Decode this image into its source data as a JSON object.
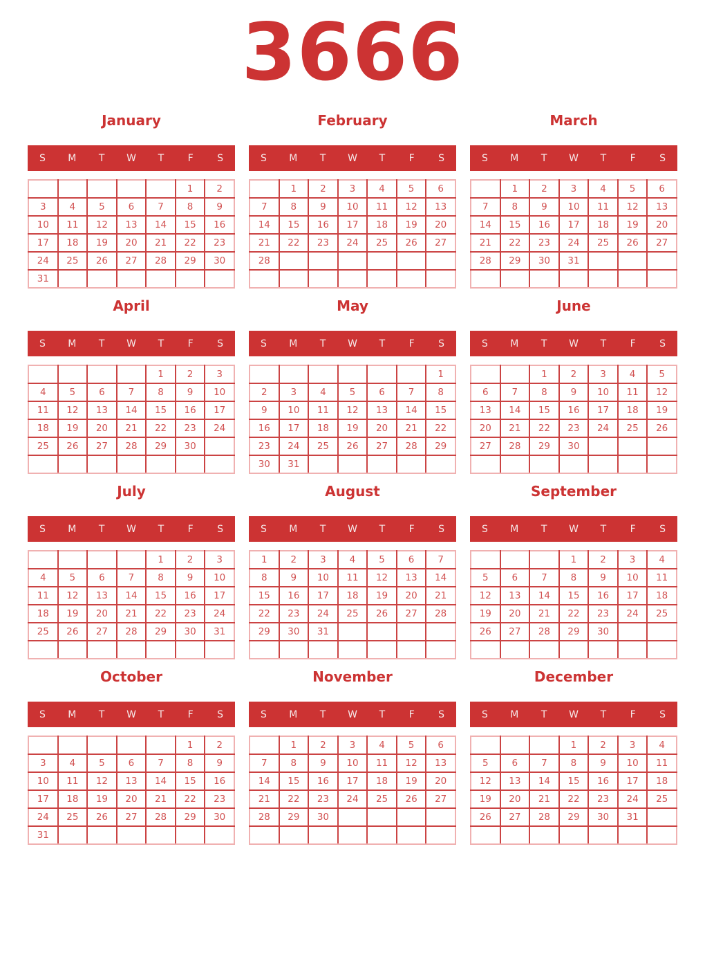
{
  "title": "3666",
  "weekday_headers": [
    "S",
    "M",
    "T",
    "W",
    "T",
    "F",
    "S"
  ],
  "colors": {
    "accent_red": "#cc3333",
    "day_number_red": "#d15151",
    "grid_line_red": "#cb4343",
    "grid_outer_pink": "#f0b1b1",
    "weekday_text": "#f6e9e9",
    "background": "#ffffff"
  },
  "months": [
    {
      "name": "January",
      "weeks": [
        [
          "",
          "",
          "",
          "",
          "",
          "1",
          "2"
        ],
        [
          "3",
          "4",
          "5",
          "6",
          "7",
          "8",
          "9"
        ],
        [
          "10",
          "11",
          "12",
          "13",
          "14",
          "15",
          "16"
        ],
        [
          "17",
          "18",
          "19",
          "20",
          "21",
          "22",
          "23"
        ],
        [
          "24",
          "25",
          "26",
          "27",
          "28",
          "29",
          "30"
        ],
        [
          "31",
          "",
          "",
          "",
          "",
          "",
          ""
        ]
      ]
    },
    {
      "name": "February",
      "weeks": [
        [
          "",
          "1",
          "2",
          "3",
          "4",
          "5",
          "6"
        ],
        [
          "7",
          "8",
          "9",
          "10",
          "11",
          "12",
          "13"
        ],
        [
          "14",
          "15",
          "16",
          "17",
          "18",
          "19",
          "20"
        ],
        [
          "21",
          "22",
          "23",
          "24",
          "25",
          "26",
          "27"
        ],
        [
          "28",
          "",
          "",
          "",
          "",
          "",
          ""
        ],
        [
          "",
          "",
          "",
          "",
          "",
          "",
          ""
        ]
      ]
    },
    {
      "name": "March",
      "weeks": [
        [
          "",
          "1",
          "2",
          "3",
          "4",
          "5",
          "6"
        ],
        [
          "7",
          "8",
          "9",
          "10",
          "11",
          "12",
          "13"
        ],
        [
          "14",
          "15",
          "16",
          "17",
          "18",
          "19",
          "20"
        ],
        [
          "21",
          "22",
          "23",
          "24",
          "25",
          "26",
          "27"
        ],
        [
          "28",
          "29",
          "30",
          "31",
          "",
          "",
          ""
        ],
        [
          "",
          "",
          "",
          "",
          "",
          "",
          ""
        ]
      ]
    },
    {
      "name": "April",
      "weeks": [
        [
          "",
          "",
          "",
          "",
          "1",
          "2",
          "3"
        ],
        [
          "4",
          "5",
          "6",
          "7",
          "8",
          "9",
          "10"
        ],
        [
          "11",
          "12",
          "13",
          "14",
          "15",
          "16",
          "17"
        ],
        [
          "18",
          "19",
          "20",
          "21",
          "22",
          "23",
          "24"
        ],
        [
          "25",
          "26",
          "27",
          "28",
          "29",
          "30",
          ""
        ],
        [
          "",
          "",
          "",
          "",
          "",
          "",
          ""
        ]
      ]
    },
    {
      "name": "May",
      "weeks": [
        [
          "",
          "",
          "",
          "",
          "",
          "",
          "1"
        ],
        [
          "2",
          "3",
          "4",
          "5",
          "6",
          "7",
          "8"
        ],
        [
          "9",
          "10",
          "11",
          "12",
          "13",
          "14",
          "15"
        ],
        [
          "16",
          "17",
          "18",
          "19",
          "20",
          "21",
          "22"
        ],
        [
          "23",
          "24",
          "25",
          "26",
          "27",
          "28",
          "29"
        ],
        [
          "30",
          "31",
          "",
          "",
          "",
          "",
          ""
        ]
      ]
    },
    {
      "name": "June",
      "weeks": [
        [
          "",
          "",
          "1",
          "2",
          "3",
          "4",
          "5"
        ],
        [
          "6",
          "7",
          "8",
          "9",
          "10",
          "11",
          "12"
        ],
        [
          "13",
          "14",
          "15",
          "16",
          "17",
          "18",
          "19"
        ],
        [
          "20",
          "21",
          "22",
          "23",
          "24",
          "25",
          "26"
        ],
        [
          "27",
          "28",
          "29",
          "30",
          "",
          "",
          ""
        ],
        [
          "",
          "",
          "",
          "",
          "",
          "",
          ""
        ]
      ]
    },
    {
      "name": "July",
      "weeks": [
        [
          "",
          "",
          "",
          "",
          "1",
          "2",
          "3"
        ],
        [
          "4",
          "5",
          "6",
          "7",
          "8",
          "9",
          "10"
        ],
        [
          "11",
          "12",
          "13",
          "14",
          "15",
          "16",
          "17"
        ],
        [
          "18",
          "19",
          "20",
          "21",
          "22",
          "23",
          "24"
        ],
        [
          "25",
          "26",
          "27",
          "28",
          "29",
          "30",
          "31"
        ],
        [
          "",
          "",
          "",
          "",
          "",
          "",
          ""
        ]
      ]
    },
    {
      "name": "August",
      "weeks": [
        [
          "1",
          "2",
          "3",
          "4",
          "5",
          "6",
          "7"
        ],
        [
          "8",
          "9",
          "10",
          "11",
          "12",
          "13",
          "14"
        ],
        [
          "15",
          "16",
          "17",
          "18",
          "19",
          "20",
          "21"
        ],
        [
          "22",
          "23",
          "24",
          "25",
          "26",
          "27",
          "28"
        ],
        [
          "29",
          "30",
          "31",
          "",
          "",
          "",
          ""
        ],
        [
          "",
          "",
          "",
          "",
          "",
          "",
          ""
        ]
      ]
    },
    {
      "name": "September",
      "weeks": [
        [
          "",
          "",
          "",
          "1",
          "2",
          "3",
          "4"
        ],
        [
          "5",
          "6",
          "7",
          "8",
          "9",
          "10",
          "11"
        ],
        [
          "12",
          "13",
          "14",
          "15",
          "16",
          "17",
          "18"
        ],
        [
          "19",
          "20",
          "21",
          "22",
          "23",
          "24",
          "25"
        ],
        [
          "26",
          "27",
          "28",
          "29",
          "30",
          "",
          ""
        ],
        [
          "",
          "",
          "",
          "",
          "",
          "",
          ""
        ]
      ]
    },
    {
      "name": "October",
      "weeks": [
        [
          "",
          "",
          "",
          "",
          "",
          "1",
          "2"
        ],
        [
          "3",
          "4",
          "5",
          "6",
          "7",
          "8",
          "9"
        ],
        [
          "10",
          "11",
          "12",
          "13",
          "14",
          "15",
          "16"
        ],
        [
          "17",
          "18",
          "19",
          "20",
          "21",
          "22",
          "23"
        ],
        [
          "24",
          "25",
          "26",
          "27",
          "28",
          "29",
          "30"
        ],
        [
          "31",
          "",
          "",
          "",
          "",
          "",
          ""
        ]
      ]
    },
    {
      "name": "November",
      "weeks": [
        [
          "",
          "1",
          "2",
          "3",
          "4",
          "5",
          "6"
        ],
        [
          "7",
          "8",
          "9",
          "10",
          "11",
          "12",
          "13"
        ],
        [
          "14",
          "15",
          "16",
          "17",
          "18",
          "19",
          "20"
        ],
        [
          "21",
          "22",
          "23",
          "24",
          "25",
          "26",
          "27"
        ],
        [
          "28",
          "29",
          "30",
          "",
          "",
          "",
          ""
        ],
        [
          "",
          "",
          "",
          "",
          "",
          "",
          ""
        ]
      ]
    },
    {
      "name": "December",
      "weeks": [
        [
          "",
          "",
          "",
          "1",
          "2",
          "3",
          "4"
        ],
        [
          "5",
          "6",
          "7",
          "8",
          "9",
          "10",
          "11"
        ],
        [
          "12",
          "13",
          "14",
          "15",
          "16",
          "17",
          "18"
        ],
        [
          "19",
          "20",
          "21",
          "22",
          "23",
          "24",
          "25"
        ],
        [
          "26",
          "27",
          "28",
          "29",
          "30",
          "31",
          ""
        ],
        [
          "",
          "",
          "",
          "",
          "",
          "",
          ""
        ]
      ]
    }
  ]
}
